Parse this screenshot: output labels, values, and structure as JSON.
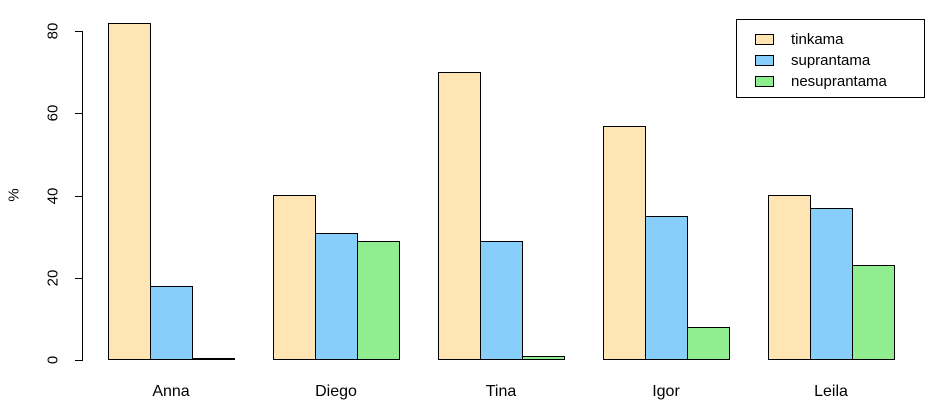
{
  "figure": {
    "background": "#ffffff",
    "text_color": "#000000"
  },
  "chart_data": {
    "type": "bar",
    "title": "",
    "xlabel": "",
    "ylabel": "%",
    "categories": [
      "Anna",
      "Diego",
      "Tina",
      "Igor",
      "Leila"
    ],
    "series": [
      {
        "name": "tinkama",
        "color": "#FFE5B4",
        "values": [
          82,
          40,
          70,
          57,
          40
        ]
      },
      {
        "name": "suprantama",
        "color": "#87CEFA",
        "values": [
          18,
          31,
          29,
          35,
          37
        ]
      },
      {
        "name": "nesuprantama",
        "color": "#90EE90",
        "values": [
          0,
          29,
          1,
          8,
          23
        ]
      }
    ],
    "ylim": [
      0,
      80
    ],
    "yticks": [
      0,
      20,
      40,
      60,
      80
    ],
    "grid": false,
    "legend_position": "top-right",
    "bar_border_color": "#000000"
  }
}
